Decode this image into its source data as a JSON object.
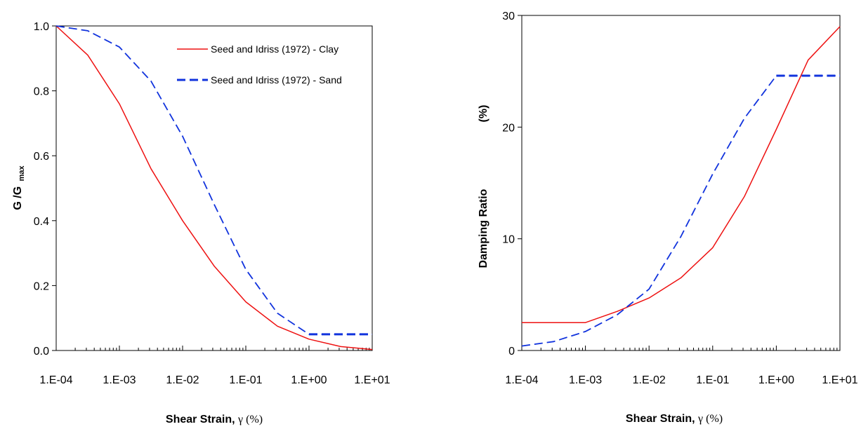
{
  "chart_data": [
    {
      "type": "line",
      "x_scale": "log",
      "xlabel": "Shear Strain,",
      "xlabel_symbol": "γ (%)",
      "ylabel": "G /G",
      "ylabel_sub": "max",
      "xlim": [
        0.0001,
        10
      ],
      "ylim": [
        0,
        1
      ],
      "x_ticks": [
        "1.E-04",
        "1.E-03",
        "1.E-02",
        "1.E-01",
        "1.E+00",
        "1.E+01"
      ],
      "y_ticks": [
        "0.0",
        "0.2",
        "0.4",
        "0.6",
        "0.8",
        "1.0"
      ],
      "grid": false,
      "legend_position": "top-right",
      "series": [
        {
          "name": "Seed and Idriss (1972) - Clay",
          "color": "#ee1111",
          "style": "solid",
          "x": [
            0.0001,
            0.000316,
            0.001,
            0.00316,
            0.01,
            0.0316,
            0.1,
            0.316,
            1,
            3.16,
            10
          ],
          "y": [
            1.0,
            0.91,
            0.76,
            0.56,
            0.4,
            0.26,
            0.15,
            0.075,
            0.035,
            0.012,
            0.003
          ]
        },
        {
          "name": "Seed and Idriss (1972) - Sand",
          "color": "#1133dd",
          "style": "dashed",
          "x": [
            0.0001,
            0.000316,
            0.001,
            0.00316,
            0.01,
            0.0316,
            0.1,
            0.316,
            1,
            3.16,
            10
          ],
          "y": [
            1.0,
            0.985,
            0.935,
            0.83,
            0.66,
            0.45,
            0.25,
            0.115,
            0.05,
            0.05,
            0.05
          ]
        }
      ]
    },
    {
      "type": "line",
      "x_scale": "log",
      "xlabel": "Shear Strain,",
      "xlabel_symbol": "γ (%)",
      "ylabel": "Damping Ratio",
      "ylabel_unit": "(%)",
      "xlim": [
        0.0001,
        10
      ],
      "ylim": [
        0,
        30
      ],
      "x_ticks": [
        "1.E-04",
        "1.E-03",
        "1.E-02",
        "1.E-01",
        "1.E+00",
        "1.E+01"
      ],
      "y_ticks": [
        "0",
        "10",
        "20",
        "30"
      ],
      "grid": false,
      "series": [
        {
          "color": "#ee1111",
          "style": "solid",
          "x": [
            0.0001,
            0.000316,
            0.001,
            0.00316,
            0.01,
            0.0316,
            0.1,
            0.316,
            1,
            3.16,
            10
          ],
          "y": [
            2.5,
            2.5,
            2.5,
            3.5,
            4.7,
            6.5,
            9.2,
            13.8,
            19.8,
            26.0,
            29.0
          ]
        },
        {
          "color": "#1133dd",
          "style": "dashed",
          "x": [
            0.0001,
            0.000316,
            0.001,
            0.00316,
            0.01,
            0.0316,
            0.1,
            0.316,
            1,
            3.16,
            10
          ],
          "y": [
            0.4,
            0.8,
            1.7,
            3.2,
            5.5,
            10.2,
            15.8,
            20.8,
            24.6,
            24.6,
            24.6
          ]
        }
      ]
    }
  ]
}
